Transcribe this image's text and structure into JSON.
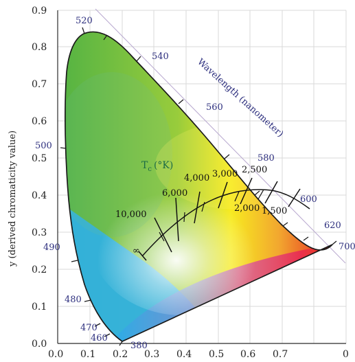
{
  "diagram": {
    "y_axis_label": "y (derived chromaticity value)",
    "x_ticks": [
      "0.0",
      "0.1",
      "0.2",
      "0.3",
      "0.4",
      "0.5",
      "0.6",
      "0.7",
      "0"
    ],
    "y_ticks": [
      "0.0",
      "0.1",
      "0.2",
      "0.3",
      "0.4",
      "0.5",
      "0.6",
      "0.7",
      "0.8",
      "0.9"
    ],
    "wavelength_axis_title": "Wavelength (nanometer)",
    "wavelength_labels": [
      "380",
      "460",
      "470",
      "480",
      "490",
      "500",
      "520",
      "540",
      "560",
      "580",
      "600",
      "620",
      "700"
    ],
    "color_temperature_title": "T",
    "color_temperature_subscript": "c",
    "color_temperature_unit": "(°K)",
    "temperature_labels": [
      "10,000",
      "6,000",
      "4,000",
      "3,000",
      "2,500",
      "2,000",
      "1,500",
      "∞"
    ],
    "colors": {
      "grid": "#d8d8d8",
      "axis": "#2b2b2b",
      "locus": "#1a1a1a",
      "wavelength_text": "#2d2f7e",
      "planckian": "#111111",
      "diagonal": "#b8a8cf"
    }
  }
}
